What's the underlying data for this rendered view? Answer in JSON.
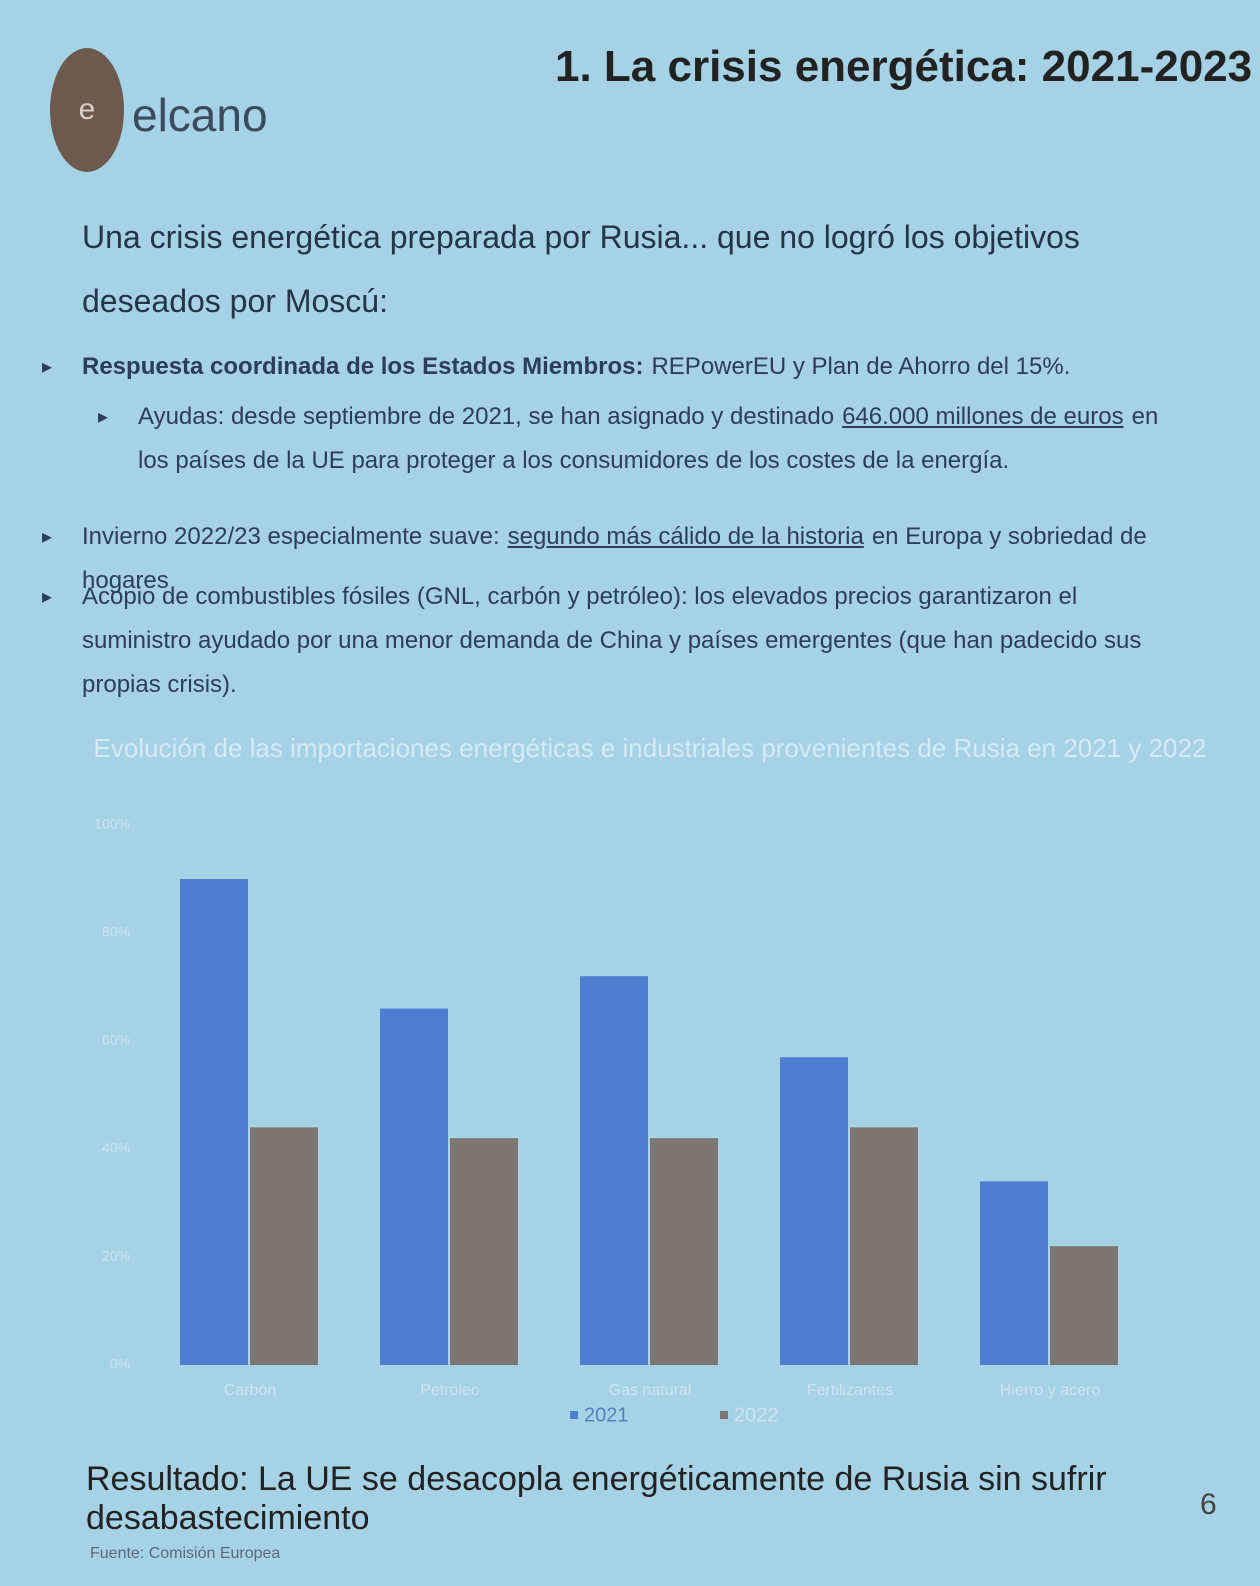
{
  "header": {
    "logo_text": "elcano",
    "title": "1. La crisis energética: 2021-2023"
  },
  "intro": "Una crisis energética preparada por Rusia... que no logró los objetivos deseados por Moscú:",
  "bullets": [
    {
      "bold": "Respuesta coordinada de los Estados Miembros:",
      "text": "REPowerEU y Plan de Ahorro del 15%."
    },
    {
      "text": "Ayudas: desde septiembre de 2021, se han asignado y destinado",
      "underline": "646.000 millones de euros",
      "rest": "en los países de la UE para proteger a los consumidores de los costes de la energía."
    },
    {
      "text": "Invierno 2022/23 especialmente suave:",
      "underline": "segundo más cálido de la historia",
      "rest": "en Europa y sobriedad de hogares"
    },
    {
      "text": "Acopio de combustibles fósiles (GNL, carbón y petróleo): los elevados precios garantizaron el suministro ayudado por una menor demanda de China y países emergentes (que han padecido sus propias crisis)."
    }
  ],
  "chart_data": {
    "type": "bar",
    "title": "Evolución de las importaciones energéticas e industriales provenientes de Rusia en 2021 y 2022",
    "categories": [
      "Carbón",
      "Petróleo",
      "Gas natural",
      "Fertilizantes",
      "Hierro y acero"
    ],
    "series": [
      {
        "name": "2021",
        "color": "#4f7ed0",
        "values": [
          90,
          66,
          72,
          57,
          34
        ]
      },
      {
        "name": "2022",
        "color": "#7d7570",
        "values": [
          44,
          42,
          42,
          44,
          22
        ]
      }
    ],
    "ylim": [
      0,
      100
    ],
    "yticks": [
      {
        "value": 0,
        "label": "0%"
      },
      {
        "value": 20,
        "label": "20%"
      },
      {
        "value": 40,
        "label": "40%"
      },
      {
        "value": 60,
        "label": "60%"
      },
      {
        "value": 80,
        "label": "80%"
      },
      {
        "value": 100,
        "label": "100%"
      }
    ],
    "legend": "bottom"
  },
  "footer": {
    "result": "Resultado: La UE se desacopla energéticamente de Rusia sin sufrir desabastecimiento",
    "source": "Fuente: Comisión Europea",
    "page": "6"
  }
}
